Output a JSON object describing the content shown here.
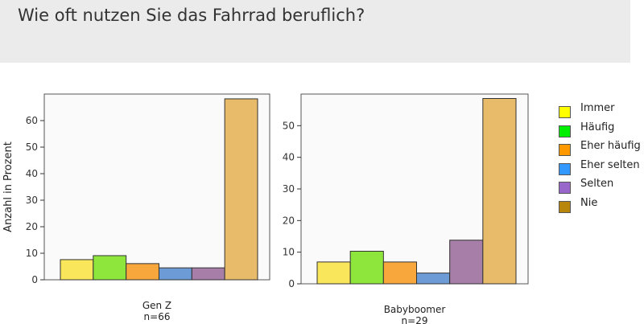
{
  "header": {
    "title": "Wie oft nutzen Sie das Fahrrad beruflich?"
  },
  "chart_data": [
    {
      "type": "bar",
      "title": "",
      "xlabel": "Gen Z",
      "sublabel": "n=66",
      "ylabel": "Anzahl in Prozent",
      "ylim": [
        0,
        70
      ],
      "yticks": [
        0,
        10,
        20,
        30,
        40,
        50,
        60
      ],
      "categories": [
        "Immer",
        "Häufig",
        "Eher häufig",
        "Eher selten",
        "Selten",
        "Nie"
      ],
      "values": [
        7.6,
        9.1,
        6.1,
        4.5,
        4.5,
        68.2
      ]
    },
    {
      "type": "bar",
      "title": "",
      "xlabel": "Babyboomer",
      "sublabel": "n=29",
      "ylabel": "",
      "ylim": [
        0,
        60
      ],
      "yticks": [
        0,
        10,
        20,
        30,
        40,
        50
      ],
      "categories": [
        "Immer",
        "Häufig",
        "Eher häufig",
        "Eher selten",
        "Selten",
        "Nie"
      ],
      "values": [
        6.9,
        10.3,
        6.9,
        3.4,
        13.8,
        58.6
      ]
    }
  ],
  "legend": {
    "items": [
      {
        "label": "Immer",
        "color": "#ffff00"
      },
      {
        "label": "Häufig",
        "color": "#00ee00"
      },
      {
        "label": "Eher häufig",
        "color": "#ff9900"
      },
      {
        "label": "Eher selten",
        "color": "#3399ff"
      },
      {
        "label": "Selten",
        "color": "#9966cc"
      },
      {
        "label": "Nie",
        "color": "#b8860b"
      }
    ]
  },
  "bar_colors": [
    "#f9e65a",
    "#8ee63c",
    "#f7a73b",
    "#6d9bd6",
    "#a67ea8",
    "#e8bb6a"
  ]
}
